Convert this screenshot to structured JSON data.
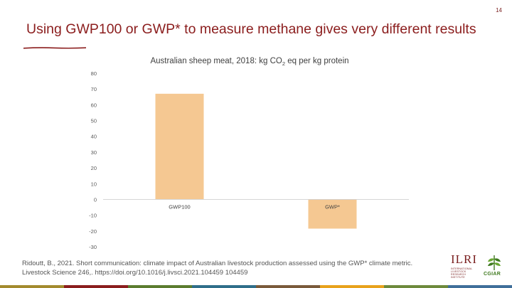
{
  "slide": {
    "number": "14",
    "title": "Using GWP100 or GWP* to measure methane gives very different results"
  },
  "chart_data": {
    "type": "bar",
    "title_prefix": "Australian sheep meat, 2018: kg CO",
    "title_sub": "2",
    "title_suffix": " eq per kg protein",
    "categories": [
      "GWP100",
      "GWP*"
    ],
    "values": [
      67,
      -18.5
    ],
    "ylim": [
      -30,
      80
    ],
    "yticks": [
      "80",
      "70",
      "60",
      "50",
      "40",
      "30",
      "20",
      "10",
      "0",
      "-10",
      "-20",
      "-30"
    ],
    "bar_color": "#f5c892",
    "grid": false,
    "xlabel": "",
    "ylabel": ""
  },
  "reference": {
    "line1": "Ridoutt, B., 2021. Short communication: climate impact of Australian livestock production assessed using the GWP* climate metric.",
    "line2": "Livestock Science 246,. https://doi.org/10.1016/j.livsci.2021.104459 104459"
  },
  "logos": {
    "ilri": "ILRI",
    "ilri_sub": "INTERNATIONAL LIVESTOCK RESEARCH INSTITUTE",
    "cgiar": "CGIAR",
    "ilri_color": "#7a1f1f",
    "cgiar_color": "#3f7a1f"
  },
  "footer_colors": [
    "#a38b2e",
    "#8b1d1d",
    "#5b7c2f",
    "#2f6e8a",
    "#7a5a3a",
    "#e8a21c",
    "#6d8a3c",
    "#3f6f9a"
  ]
}
